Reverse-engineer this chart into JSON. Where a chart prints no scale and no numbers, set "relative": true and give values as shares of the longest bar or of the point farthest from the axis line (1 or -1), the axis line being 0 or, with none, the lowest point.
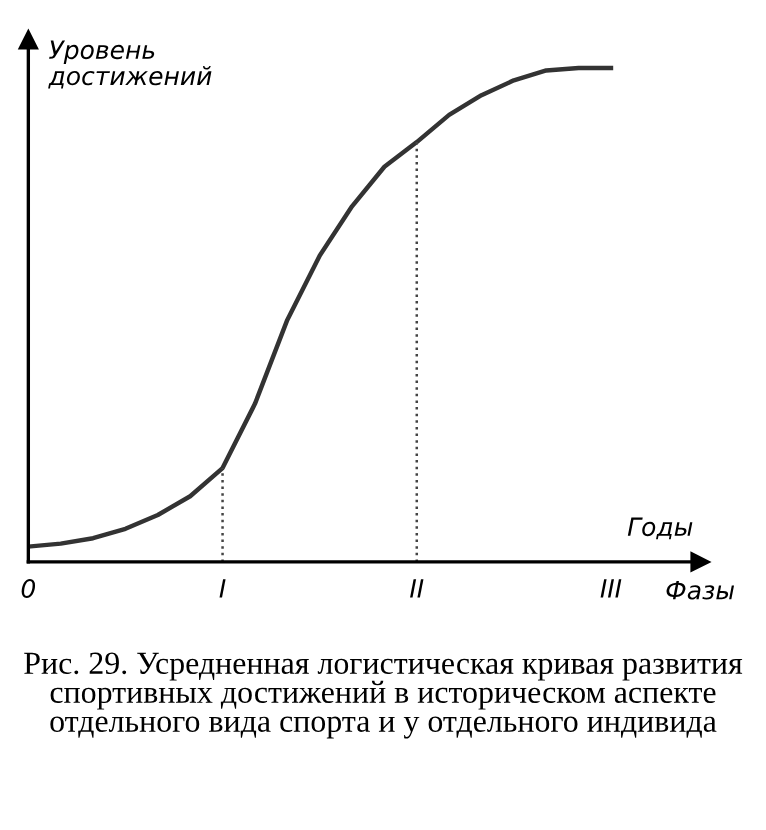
{
  "chart_data": {
    "type": "line",
    "relative": true,
    "xlabel": "Годы",
    "ylabel": "Уровень достижений",
    "categories": [
      "0",
      null,
      null,
      null,
      null,
      null,
      "I",
      null,
      null,
      null,
      null,
      null,
      "II",
      null,
      null,
      null,
      null,
      null,
      "III"
    ],
    "series": [
      {
        "color": "#333333",
        "values": [
          0.031,
          0.037,
          0.048,
          0.067,
          0.095,
          0.133,
          0.19,
          0.32,
          0.49,
          0.62,
          0.72,
          0.8,
          0.85,
          0.905,
          0.945,
          0.975,
          0.995,
          1.0,
          1.0
        ]
      }
    ],
    "ref_lines": [
      {
        "axis": "x",
        "value": "I",
        "line_style": "dotted",
        "color": "#444444"
      },
      {
        "axis": "x",
        "value": "II",
        "line_style": "dotted",
        "color": "#444444"
      }
    ],
    "annotations": [
      "Фазы",
      "Рис. 29. Усредненная логистическая кривая развития спортивных достижений в историческом аспекте отдельного вида спорта и у отдельного индивида"
    ]
  }
}
